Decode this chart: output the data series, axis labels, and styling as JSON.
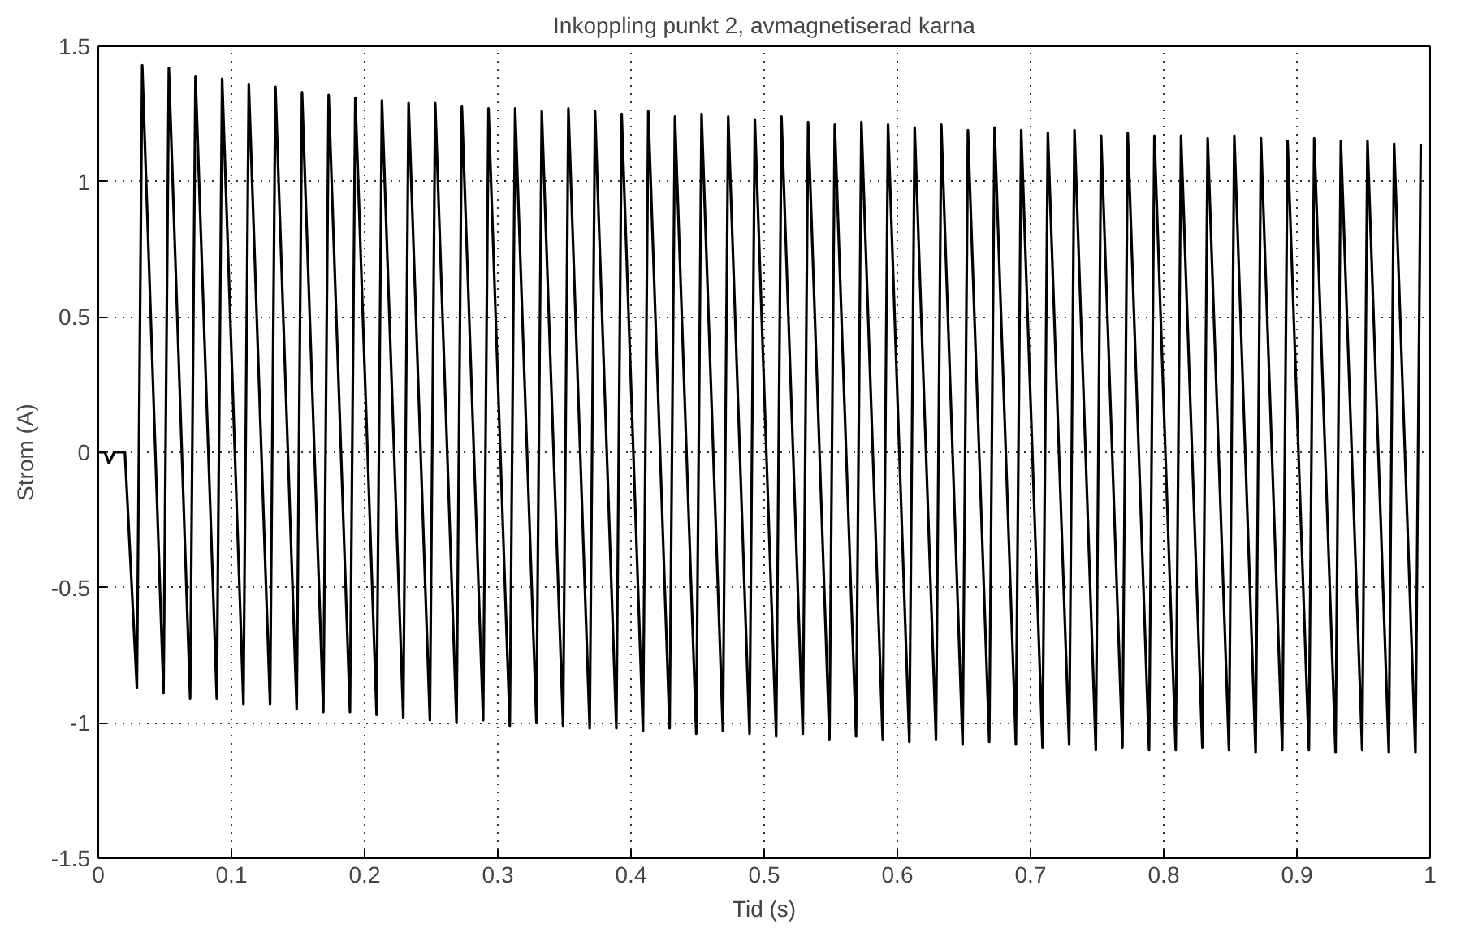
{
  "chart_data": {
    "type": "line",
    "title": "Inkoppling punkt 2, avmagnetiserad karna",
    "xlabel": "Tid (s)",
    "ylabel": "Strom (A)",
    "xlim": [
      0,
      1
    ],
    "ylim": [
      -1.5,
      1.5
    ],
    "xticks": [
      0,
      0.1,
      0.2,
      0.3,
      0.4,
      0.5,
      0.6,
      0.7,
      0.8,
      0.9,
      1
    ],
    "yticks": [
      -1.5,
      -1,
      -0.5,
      0,
      0.5,
      1,
      1.5
    ],
    "grid": true,
    "line_style": "solid",
    "marker": "none",
    "series": [
      {
        "color": "#000000",
        "x": [
          0,
          0.005,
          0.008,
          0.012,
          0.02,
          0.029,
          0.033,
          0.049,
          0.053,
          0.069,
          0.073,
          0.089,
          0.093,
          0.109,
          0.113,
          0.129,
          0.133,
          0.149,
          0.153,
          0.169,
          0.173,
          0.189,
          0.193,
          0.209,
          0.213,
          0.229,
          0.233,
          0.249,
          0.253,
          0.269,
          0.273,
          0.289,
          0.293,
          0.309,
          0.313,
          0.329,
          0.333,
          0.349,
          0.353,
          0.369,
          0.373,
          0.389,
          0.393,
          0.409,
          0.413,
          0.429,
          0.433,
          0.449,
          0.453,
          0.469,
          0.473,
          0.489,
          0.493,
          0.509,
          0.513,
          0.529,
          0.533,
          0.549,
          0.553,
          0.569,
          0.573,
          0.589,
          0.593,
          0.609,
          0.613,
          0.629,
          0.633,
          0.649,
          0.653,
          0.669,
          0.673,
          0.689,
          0.693,
          0.709,
          0.713,
          0.729,
          0.733,
          0.749,
          0.753,
          0.769,
          0.773,
          0.789,
          0.793,
          0.809,
          0.813,
          0.829,
          0.833,
          0.849,
          0.853,
          0.869,
          0.873,
          0.889,
          0.893,
          0.909,
          0.913,
          0.929,
          0.933,
          0.949,
          0.953,
          0.969,
          0.973,
          0.989,
          0.993
        ],
        "values": [
          0,
          0,
          -0.04,
          0,
          0,
          -0.87,
          1.43,
          -0.89,
          1.42,
          -0.91,
          1.39,
          -0.91,
          1.38,
          -0.93,
          1.36,
          -0.93,
          1.35,
          -0.95,
          1.33,
          -0.96,
          1.32,
          -0.96,
          1.31,
          -0.97,
          1.3,
          -0.98,
          1.29,
          -0.99,
          1.29,
          -1.0,
          1.28,
          -0.99,
          1.27,
          -1.01,
          1.27,
          -1.0,
          1.26,
          -1.01,
          1.27,
          -1.02,
          1.26,
          -1.02,
          1.25,
          -1.03,
          1.26,
          -1.02,
          1.24,
          -1.04,
          1.25,
          -1.03,
          1.24,
          -1.04,
          1.23,
          -1.05,
          1.24,
          -1.04,
          1.22,
          -1.06,
          1.21,
          -1.05,
          1.22,
          -1.06,
          1.21,
          -1.07,
          1.2,
          -1.06,
          1.21,
          -1.08,
          1.19,
          -1.07,
          1.2,
          -1.08,
          1.19,
          -1.09,
          1.18,
          -1.08,
          1.19,
          -1.1,
          1.17,
          -1.09,
          1.18,
          -1.1,
          1.17,
          -1.1,
          1.17,
          -1.09,
          1.16,
          -1.1,
          1.17,
          -1.11,
          1.16,
          -1.1,
          1.15,
          -1.1,
          1.16,
          -1.11,
          1.15,
          -1.1,
          1.15,
          -1.11,
          1.14,
          -1.11,
          1.14
        ]
      }
    ]
  }
}
